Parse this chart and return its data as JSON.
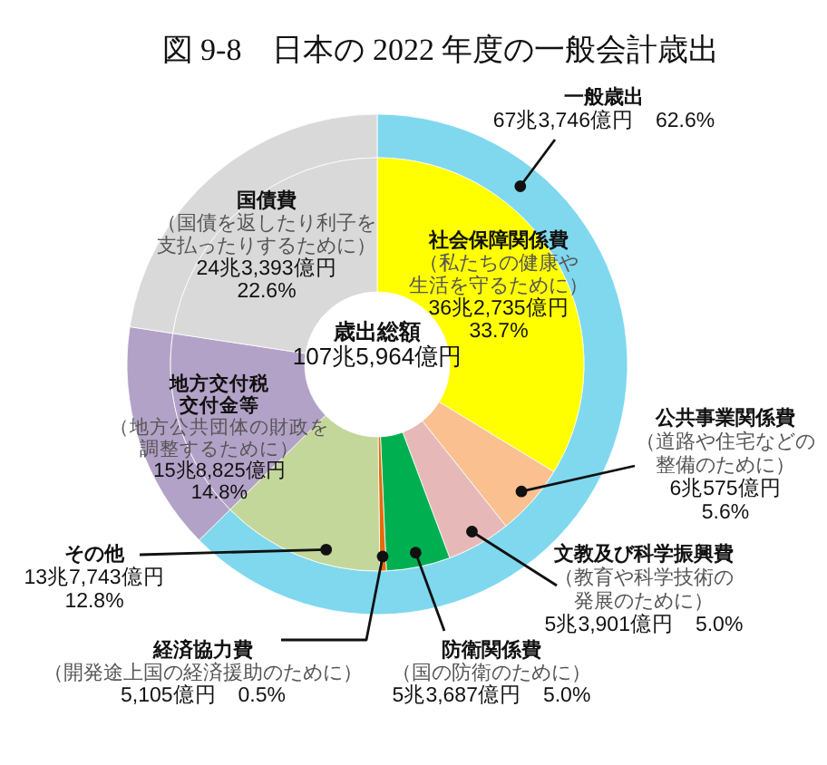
{
  "chart_data": [
    {
      "type": "donut",
      "title": "図 9-8　日本の 2022 年度の一般会計歳出",
      "categories": [
        "社会保障関係費（私たちの健康や生活を守るために）",
        "公共事業関係費（道路や住宅などの整備のために）",
        "文教及び科学振興費（教育や科学技術の発展のために）",
        "防衛関係費（国の防衛のために）",
        "経済協力費（開発途上国の経済援助のために）",
        "その他",
        "地方交付税交付金等（地方公共団体の財政を調整するために）",
        "国債費（国債を返したり利子を支払ったりするために）"
      ],
      "values": [
        33.7,
        5.6,
        5.0,
        5.0,
        0.5,
        12.8,
        14.8,
        22.6
      ],
      "colors": [
        "#ffff00",
        "#fac090",
        "#e6b9b8",
        "#00b050",
        "#e46c0a",
        "#c4d79b",
        "#b3a2c7",
        "#d9d9d9"
      ],
      "value_labels": [
        "36兆2,735億円\n33.7%",
        "6兆575億円\n5.6%",
        "5兆3,901億円　5.0%",
        "5兆3,687億円　5.0%",
        "5,105億円　0.5%",
        "13兆7,743億円\n12.8%",
        "15兆8,825億円\n14.8%",
        "24兆3,393億円\n22.6%"
      ],
      "annotations": [
        "歳出総額\n107兆5,964億円"
      ]
    },
    {
      "type": "donut",
      "categories": [
        "一般歳出",
        null,
        null
      ],
      "values": [
        62.6,
        14.8,
        22.6
      ],
      "colors": [
        "#7fd8ee",
        "#b3a2c7",
        "#d9d9d9"
      ],
      "value_labels": [
        "67兆3,746億円　62.6%",
        null,
        null
      ]
    }
  ]
}
